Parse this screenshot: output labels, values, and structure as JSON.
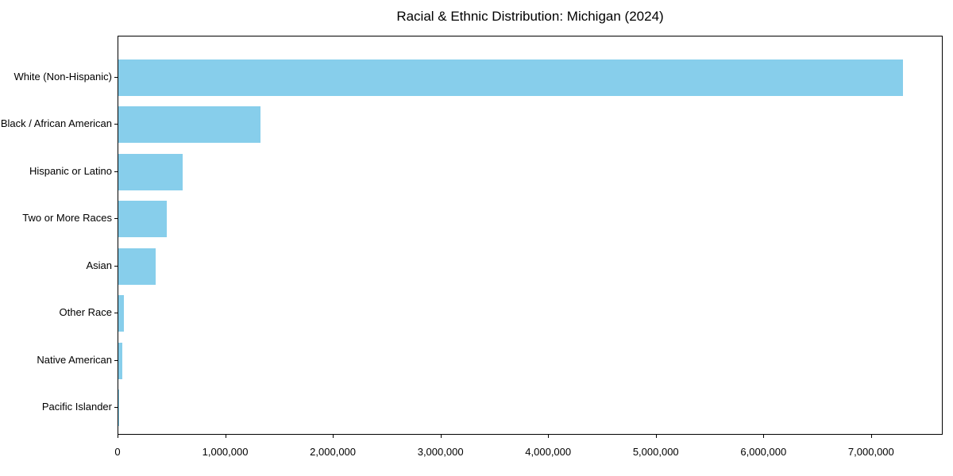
{
  "figure": {
    "background": "#ffffff"
  },
  "chart_data": {
    "type": "bar",
    "orientation": "horizontal",
    "title": "Racial & Ethnic Distribution: Michigan (2024)",
    "xlabel": "",
    "ylabel": "",
    "categories": [
      "White (Non-Hispanic)",
      "Black / African American",
      "Hispanic or Latino",
      "Two or More Races",
      "Asian",
      "Other Race",
      "Native American",
      "Pacific Islander"
    ],
    "values": [
      7300000,
      1320000,
      600000,
      450000,
      350000,
      55000,
      40000,
      3000
    ],
    "xlim": [
      0,
      7665000
    ],
    "x_ticks": [
      0,
      1000000,
      2000000,
      3000000,
      4000000,
      5000000,
      6000000,
      7000000
    ],
    "x_tick_labels": [
      "0",
      "1,000,000",
      "2,000,000",
      "3,000,000",
      "4,000,000",
      "5,000,000",
      "6,000,000",
      "7,000,000"
    ],
    "bar_color": "#87CEEB",
    "axis_color": "#000000",
    "grid": false,
    "legend": false
  }
}
